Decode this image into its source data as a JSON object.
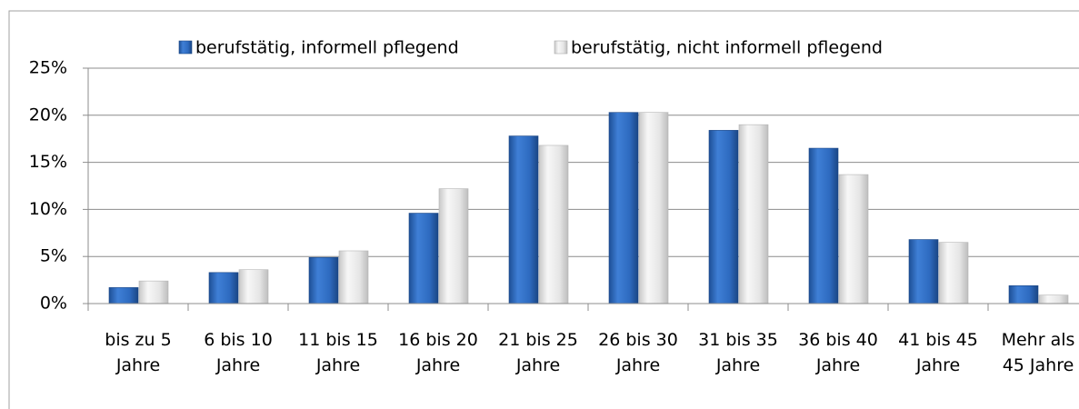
{
  "chart_data": {
    "type": "bar",
    "categories": [
      "bis zu 5 Jahre",
      "6 bis 10 Jahre",
      "11 bis 15 Jahre",
      "16 bis 20 Jahre",
      "21 bis 25 Jahre",
      "26 bis 30 Jahre",
      "31 bis 35 Jahre",
      "36 bis 40 Jahre",
      "41 bis 45 Jahre",
      "Mehr als 45 Jahre"
    ],
    "series": [
      {
        "name": "berufstätig, informell pflegend",
        "color": "#2e6bc0",
        "values": [
          1.7,
          3.3,
          4.9,
          9.6,
          17.8,
          20.3,
          18.4,
          16.5,
          6.8,
          1.9
        ]
      },
      {
        "name": "berufstätig, nicht informell pflegend",
        "color": "#e2e2e2",
        "values": [
          2.4,
          3.6,
          5.6,
          12.2,
          16.8,
          20.3,
          19.0,
          13.7,
          6.5,
          0.9
        ]
      }
    ],
    "ylim": [
      0,
      25
    ],
    "yticks": [
      {
        "value": 0,
        "label": "0%"
      },
      {
        "value": 5,
        "label": "5%"
      },
      {
        "value": 10,
        "label": "10%"
      },
      {
        "value": 15,
        "label": "15%"
      },
      {
        "value": 20,
        "label": "20%"
      },
      {
        "value": 25,
        "label": "25%"
      }
    ],
    "grid": true,
    "legend": "top"
  }
}
